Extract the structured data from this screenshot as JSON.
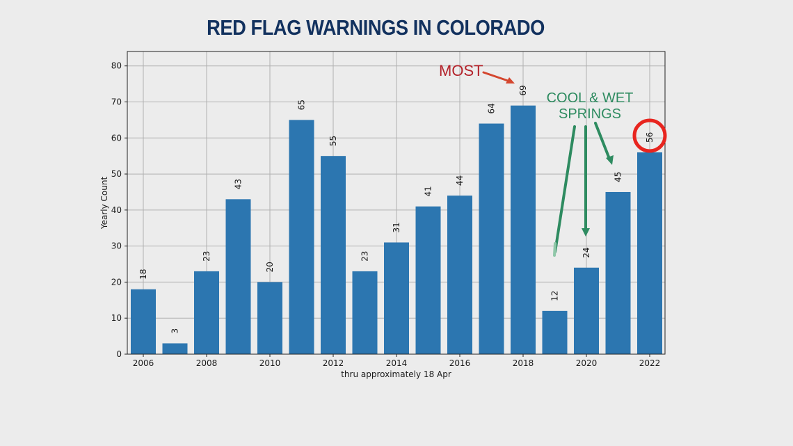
{
  "title": "RED FLAG WARNINGS IN COLORADO",
  "annotations": {
    "most": "MOST",
    "cool_line1": "COOL & WET",
    "cool_line2": "SPRINGS"
  },
  "colors": {
    "bar": "#2c76b0",
    "title": "#12315e",
    "most": "#b3222a",
    "cool": "#2e8b60",
    "circle": "#e8251f",
    "grid": "#b0b0b0"
  },
  "chart_data": {
    "type": "bar",
    "categories": [
      2006,
      2007,
      2008,
      2009,
      2010,
      2011,
      2012,
      2013,
      2014,
      2015,
      2016,
      2017,
      2018,
      2019,
      2020,
      2021,
      2022
    ],
    "values": [
      18,
      3,
      23,
      43,
      20,
      65,
      55,
      23,
      31,
      41,
      44,
      64,
      69,
      12,
      24,
      45,
      56
    ],
    "x_ticks": [
      "2006",
      "2008",
      "2010",
      "2012",
      "2014",
      "2016",
      "2018",
      "2020",
      "2022"
    ],
    "y_ticks": [
      "0",
      "10",
      "20",
      "30",
      "40",
      "50",
      "60",
      "70",
      "80"
    ],
    "ylim": [
      0,
      84
    ],
    "xlabel": "thru approximately 18 Apr",
    "ylabel": "Yearly Count",
    "grid": true,
    "highlighted": 2022
  }
}
